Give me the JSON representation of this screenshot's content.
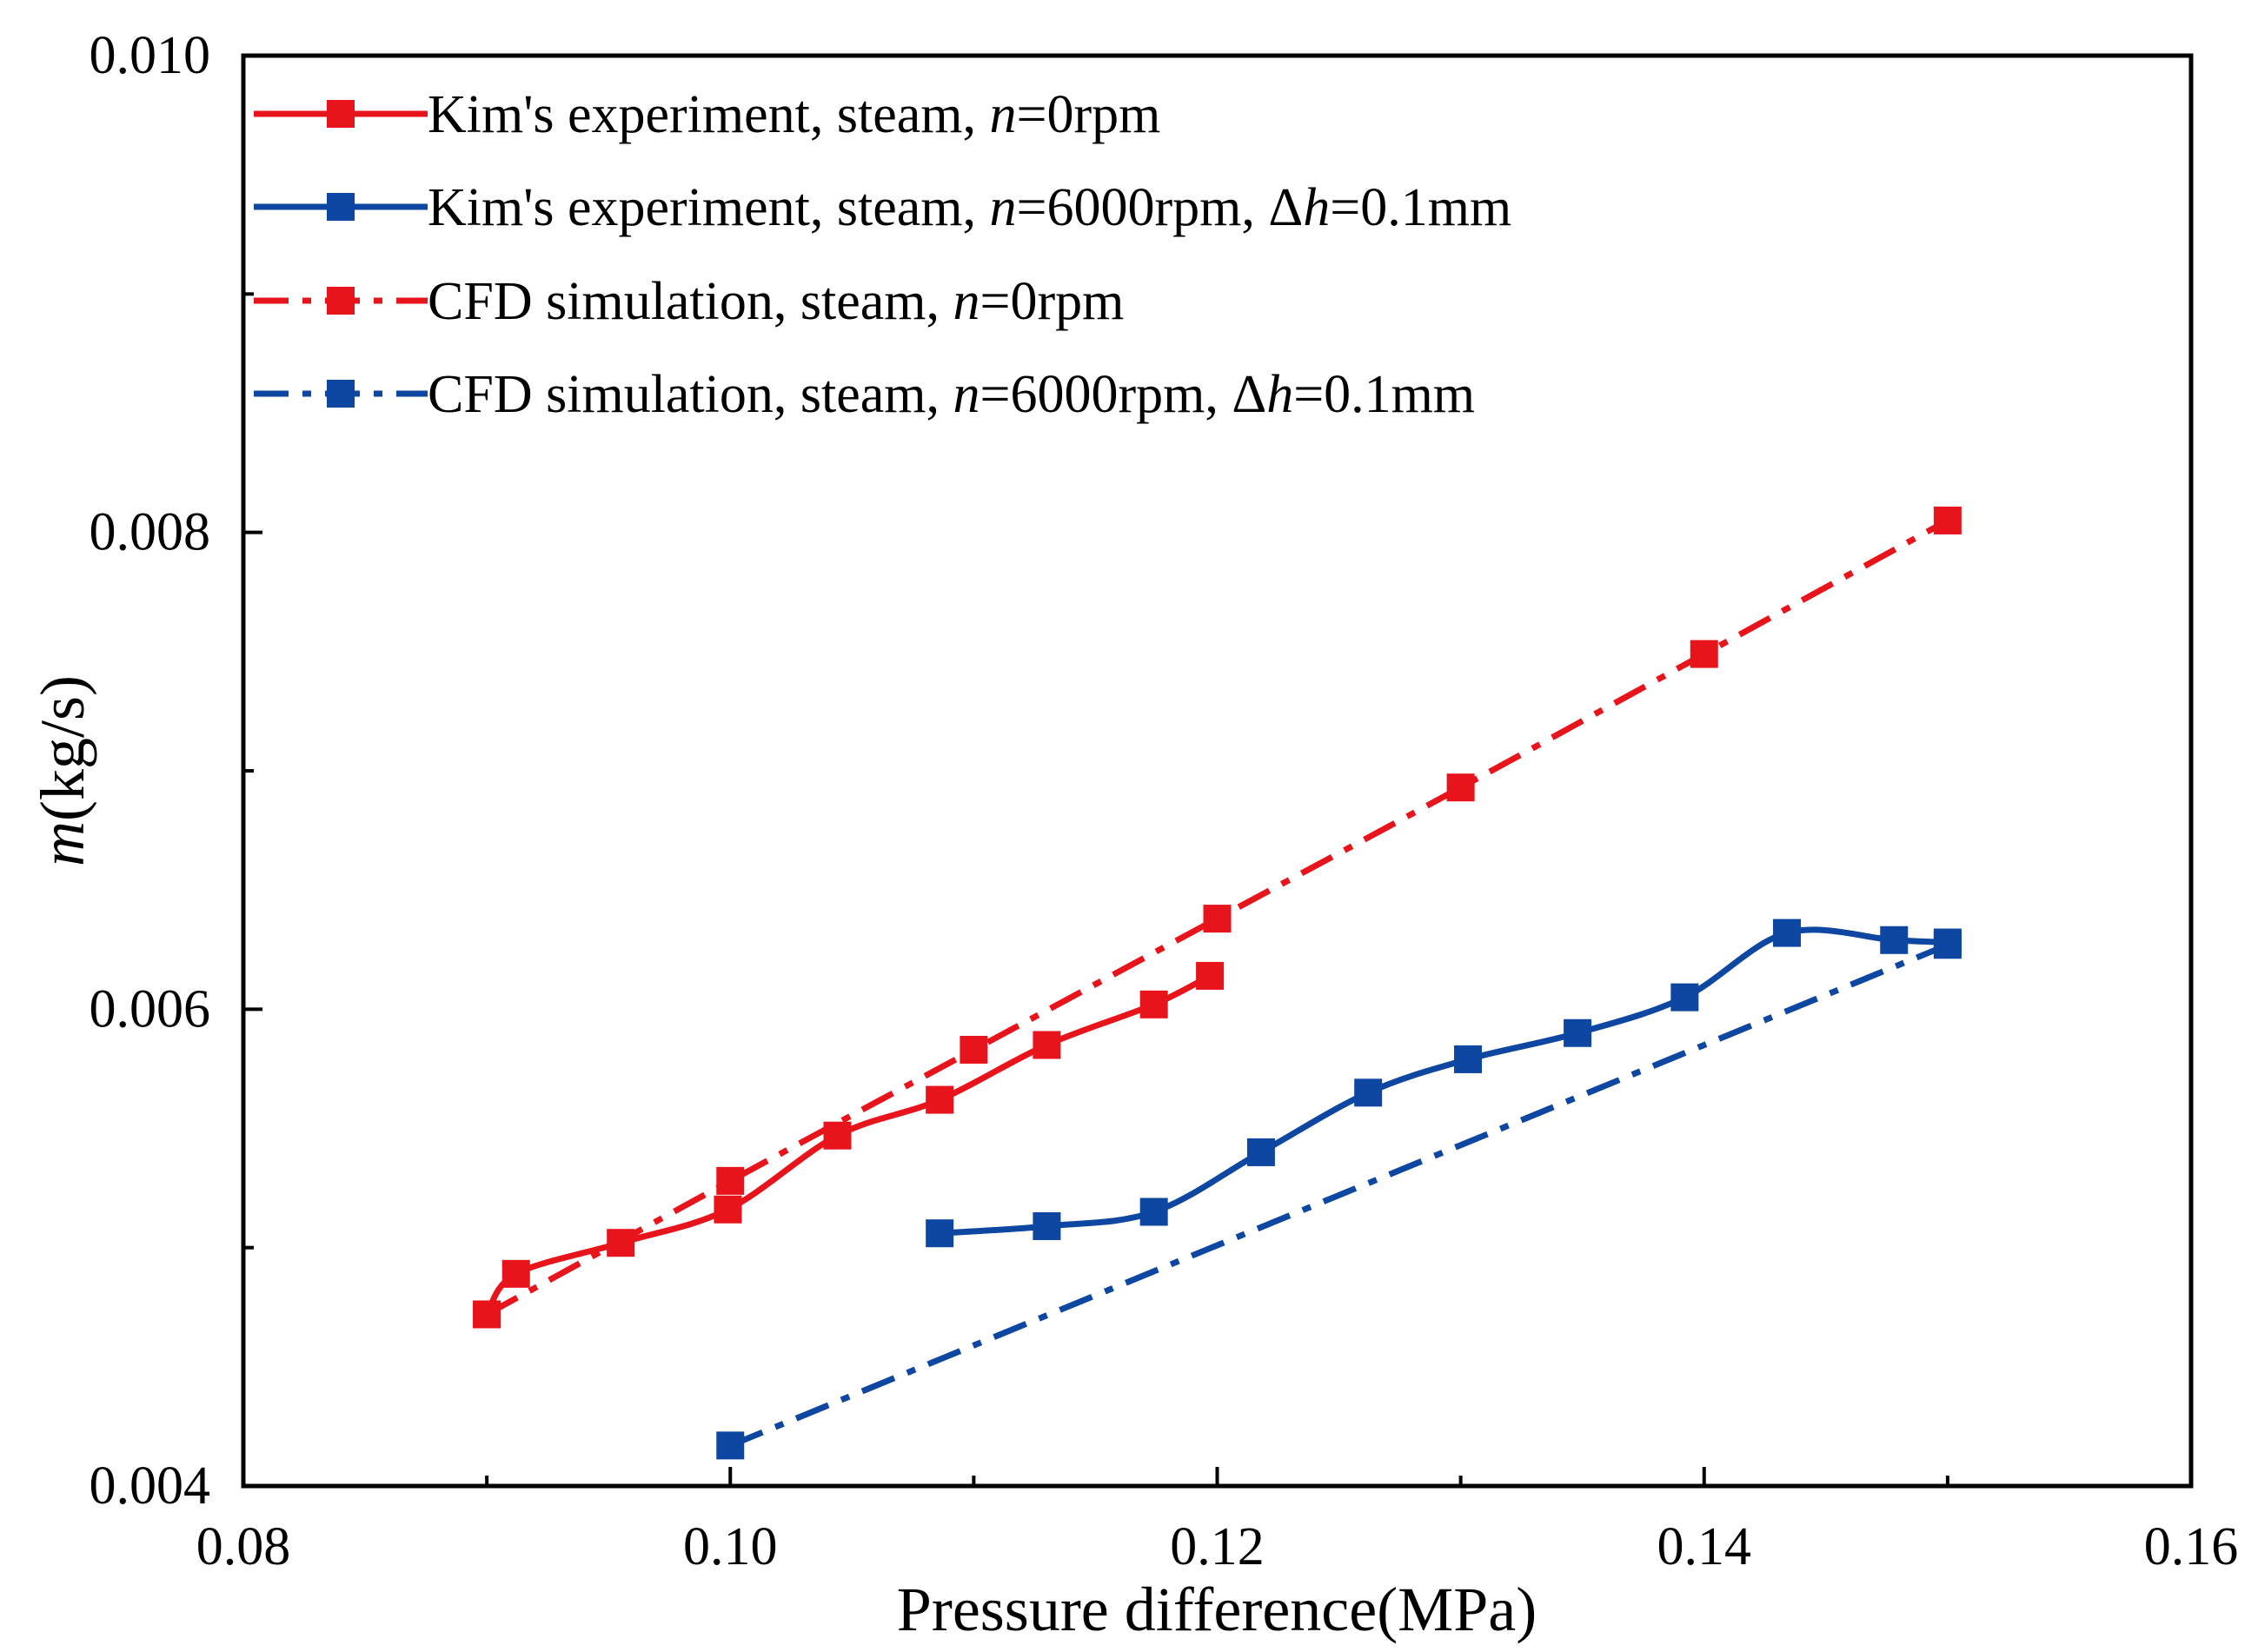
{
  "chart_data": {
    "type": "line",
    "title": "",
    "xlabel": "Pressure difference(MPa)",
    "ylabel": {
      "var": "m",
      "unit": "(kg/s)"
    },
    "xlim": [
      0.08,
      0.16
    ],
    "ylim": [
      0.004,
      0.01
    ],
    "x_major_ticks": [
      0.08,
      0.1,
      0.12,
      0.14,
      0.16
    ],
    "x_tick_labels": [
      "0.08",
      "0.10",
      "0.12",
      "0.14",
      "0.16"
    ],
    "x_minor_ticks": [
      0.09,
      0.11,
      0.13,
      0.15
    ],
    "y_major_ticks": [
      0.004,
      0.006,
      0.008,
      0.01
    ],
    "y_tick_labels": [
      "0.004",
      "0.006",
      "0.008",
      "0.010"
    ],
    "y_minor_ticks": [
      0.005,
      0.007,
      0.009
    ],
    "grid": false,
    "legend_position": "top-left",
    "series": [
      {
        "name": "Kim's experiment, steam, n=0rpm",
        "legend": {
          "pre": "Kim's experiment, steam, ",
          "var1": "n",
          "mid": "=0rpm",
          "var2": "",
          "post": ""
        },
        "color": "#e8141c",
        "style": "solid",
        "x": [
          0.09,
          0.0912,
          0.0955,
          0.0999,
          0.1044,
          0.1086,
          0.113,
          0.1174,
          0.1197
        ],
        "y": [
          0.00472,
          0.00489,
          0.00502,
          0.00516,
          0.00547,
          0.00562,
          0.00585,
          0.00602,
          0.00614
        ]
      },
      {
        "name": "Kim's experiment, steam, n=6000rpm, Δh=0.1mm",
        "legend": {
          "pre": "Kim's experiment, steam, ",
          "var1": "n",
          "mid": "=6000rpm, Δ",
          "var2": "h",
          "post": "=0.1mm"
        },
        "color": "#0d47a1",
        "style": "solid",
        "x": [
          0.1086,
          0.113,
          0.1174,
          0.1218,
          0.1262,
          0.1303,
          0.1348,
          0.1392,
          0.1434,
          0.1478,
          0.15
        ],
        "y": [
          0.00506,
          0.00509,
          0.00515,
          0.0054,
          0.00565,
          0.00579,
          0.0059,
          0.00605,
          0.00632,
          0.00629,
          0.00628
        ]
      },
      {
        "name": "CFD simulation, steam, n=0rpm",
        "legend": {
          "pre": "CFD simulation, steam, ",
          "var1": "n",
          "mid": "=0rpm",
          "var2": "",
          "post": ""
        },
        "color": "#e8141c",
        "style": "dashdot",
        "x": [
          0.09,
          0.1,
          0.11,
          0.12,
          0.13,
          0.14,
          0.15
        ],
        "y": [
          0.00472,
          0.00528,
          0.00583,
          0.00638,
          0.00693,
          0.00749,
          0.00805
        ]
      },
      {
        "name": "CFD simulation, steam, n=6000rpm, Δh=0.1mm",
        "legend": {
          "pre": "CFD simulation, steam, ",
          "var1": "n",
          "mid": "=6000rpm, Δ",
          "var2": "h",
          "post": "=0.1mm"
        },
        "color": "#0d47a1",
        "style": "dashdot",
        "x": [
          0.1,
          0.15
        ],
        "y": [
          0.00417,
          0.00627
        ]
      }
    ]
  }
}
